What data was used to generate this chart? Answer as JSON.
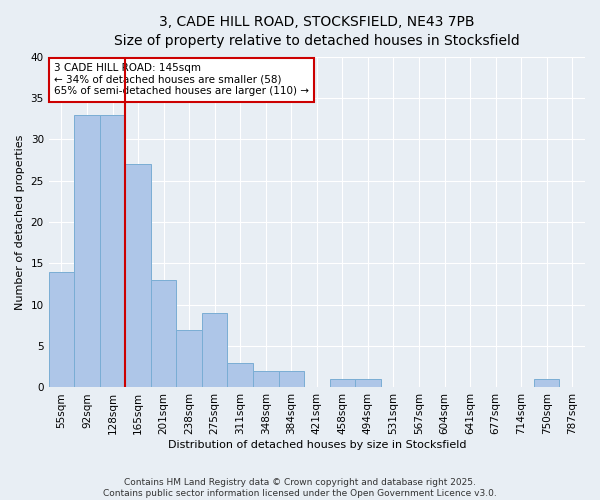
{
  "title_line1": "3, CADE HILL ROAD, STOCKSFIELD, NE43 7PB",
  "title_line2": "Size of property relative to detached houses in Stocksfield",
  "xlabel": "Distribution of detached houses by size in Stocksfield",
  "ylabel": "Number of detached properties",
  "categories": [
    "55sqm",
    "92sqm",
    "128sqm",
    "165sqm",
    "201sqm",
    "238sqm",
    "275sqm",
    "311sqm",
    "348sqm",
    "384sqm",
    "421sqm",
    "458sqm",
    "494sqm",
    "531sqm",
    "567sqm",
    "604sqm",
    "641sqm",
    "677sqm",
    "714sqm",
    "750sqm",
    "787sqm"
  ],
  "values": [
    14,
    33,
    33,
    27,
    13,
    7,
    9,
    3,
    2,
    2,
    0,
    1,
    1,
    0,
    0,
    0,
    0,
    0,
    0,
    1,
    0
  ],
  "bar_color": "#aec6e8",
  "bar_edge_color": "#7aadd4",
  "property_line_x": 2.5,
  "property_line_color": "#cc0000",
  "annotation_text": "3 CADE HILL ROAD: 145sqm\n← 34% of detached houses are smaller (58)\n65% of semi-detached houses are larger (110) →",
  "annotation_box_color": "#cc0000",
  "annotation_facecolor": "white",
  "ylim": [
    0,
    40
  ],
  "yticks": [
    0,
    5,
    10,
    15,
    20,
    25,
    30,
    35,
    40
  ],
  "background_color": "#e8eef4",
  "footer_text": "Contains HM Land Registry data © Crown copyright and database right 2025.\nContains public sector information licensed under the Open Government Licence v3.0.",
  "grid_color": "white",
  "title1_fontsize": 10,
  "title2_fontsize": 9,
  "axis_fontsize": 8,
  "tick_fontsize": 7.5,
  "annotation_fontsize": 7.5,
  "footer_fontsize": 6.5
}
